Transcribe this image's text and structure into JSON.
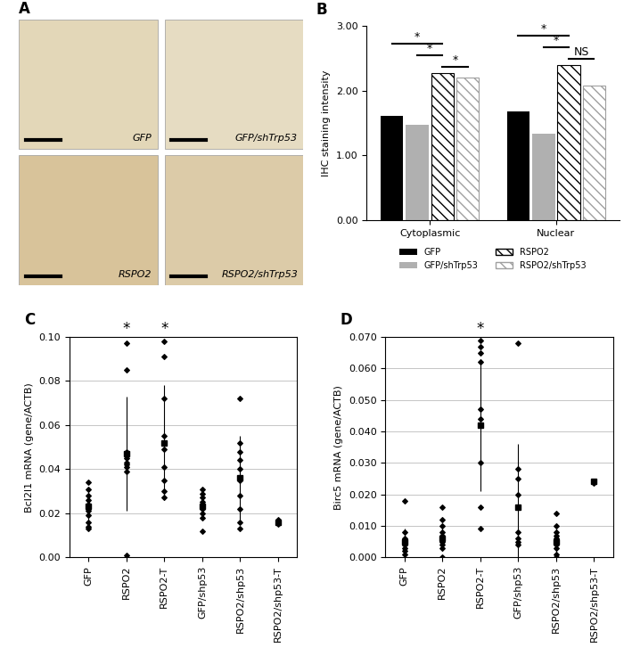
{
  "panel_a": {
    "title": "A",
    "images": [
      "GFP",
      "GFP/shTrp53",
      "RSPO2",
      "RSPO2/shTrp53"
    ]
  },
  "chart_data": [
    {
      "type": "bar",
      "title": "B",
      "y_label": "IHC staining intensity",
      "categories": [
        "Cytoplasmic",
        "Nuclear"
      ],
      "series": [
        {
          "name": "GFP",
          "color": "#000000",
          "values": [
            1.61,
            1.68
          ]
        },
        {
          "name": "GFP/shTrp53",
          "color": "#b0b0b0",
          "values": [
            1.48,
            1.34
          ]
        },
        {
          "name": "RSPO2",
          "color": "#000000",
          "values": [
            2.27,
            2.39
          ]
        },
        {
          "name": "RSPO2/shTrp53",
          "color": "#a0a0a0",
          "values": [
            2.2,
            2.08
          ]
        }
      ],
      "ylim": [
        0,
        3
      ],
      "yticks": [
        {
          "value": 0,
          "label": "0.00"
        },
        {
          "value": 1,
          "label": "1.00"
        },
        {
          "value": 2,
          "label": "2.00"
        },
        {
          "value": 3,
          "label": "3.00"
        }
      ],
      "legend": "bottom",
      "significance": [
        {
          "category": "Cytoplasmic",
          "from": "RSPO2",
          "to": "RSPO2/shTrp53",
          "label": "*"
        },
        {
          "category": "Cytoplasmic",
          "from": "GFP/shTrp53",
          "to": "RSPO2",
          "label": "*"
        },
        {
          "category": "Cytoplasmic",
          "from": "GFP",
          "to": "RSPO2",
          "label": "*"
        },
        {
          "category": "Nuclear",
          "from": "RSPO2",
          "to": "RSPO2/shTrp53",
          "label": "NS"
        },
        {
          "category": "Nuclear",
          "from": "GFP/shTrp53",
          "to": "RSPO2",
          "label": "*"
        },
        {
          "category": "Nuclear",
          "from": "GFP",
          "to": "RSPO2",
          "label": "*"
        }
      ]
    },
    {
      "type": "dot",
      "title": "C",
      "y_label": "Bcl2l1 mRNA (gene/ACTB)",
      "categories": [
        "GFP",
        "RSPO2",
        "RSPO2-T",
        "GFP/shp53",
        "RSPO2/shp53",
        "RSPO2/shp53-T"
      ],
      "points": [
        [
          0.034,
          0.031,
          0.028,
          0.026,
          0.024,
          0.022,
          0.021,
          0.019,
          0.016,
          0.014,
          0.013
        ],
        [
          0.097,
          0.085,
          0.048,
          0.045,
          0.043,
          0.042,
          0.041,
          0.039,
          0.001
        ],
        [
          0.098,
          0.091,
          0.072,
          0.055,
          0.049,
          0.041,
          0.035,
          0.03,
          0.027
        ],
        [
          0.031,
          0.029,
          0.027,
          0.025,
          0.024,
          0.022,
          0.02,
          0.018,
          0.012
        ],
        [
          0.072,
          0.052,
          0.048,
          0.044,
          0.04,
          0.035,
          0.028,
          0.022,
          0.016,
          0.013
        ],
        [
          0.017,
          0.016,
          0.015
        ]
      ],
      "means": [
        0.023,
        0.047,
        0.052,
        0.023,
        0.036,
        0.016
      ],
      "errors": [
        0.007,
        0.026,
        0.026,
        0.006,
        0.019,
        0.001
      ],
      "ylim": [
        0,
        0.1
      ],
      "yticks": [
        {
          "value": 0,
          "label": "0.00"
        },
        {
          "value": 0.02,
          "label": "0.02"
        },
        {
          "value": 0.04,
          "label": "0.04"
        },
        {
          "value": 0.06,
          "label": "0.06"
        },
        {
          "value": 0.08,
          "label": "0.08"
        },
        {
          "value": 0.1,
          "label": "0.10"
        }
      ],
      "grid": true,
      "marker": "diamond",
      "significance": [
        {
          "category": "RSPO2",
          "label": "*"
        },
        {
          "category": "RSPO2-T",
          "label": "*"
        }
      ]
    },
    {
      "type": "dot",
      "title": "D",
      "y_label": "Birc5 mRNA (gene/ACTB)",
      "categories": [
        "GFP",
        "RSPO2",
        "RSPO2-T",
        "GFP/shp53",
        "RSPO2/shp53",
        "RSPO2/shp53-T"
      ],
      "points": [
        [
          0.018,
          0.008,
          0.006,
          0.005,
          0.004,
          0.004,
          0.003,
          0.002,
          0.001
        ],
        [
          0.016,
          0.012,
          0.01,
          0.008,
          0.007,
          0.006,
          0.005,
          0.004,
          0.003,
          0.0
        ],
        [
          0.069,
          0.067,
          0.065,
          0.062,
          0.047,
          0.044,
          0.042,
          0.042,
          0.03,
          0.016,
          0.009
        ],
        [
          0.068,
          0.028,
          0.025,
          0.02,
          0.016,
          0.008,
          0.006,
          0.005,
          0.004
        ],
        [
          0.014,
          0.01,
          0.008,
          0.007,
          0.006,
          0.005,
          0.004,
          0.003,
          0.001,
          0.0
        ],
        [
          0.024,
          0.0235
        ]
      ],
      "means": [
        0.005,
        0.006,
        0.042,
        0.016,
        0.005,
        0.024
      ],
      "errors": [
        0.004,
        0.004,
        0.021,
        0.02,
        0.004,
        0.0005
      ],
      "ylim": [
        0,
        0.07
      ],
      "yticks": [
        {
          "value": 0,
          "label": "0.000"
        },
        {
          "value": 0.01,
          "label": "0.010"
        },
        {
          "value": 0.02,
          "label": "0.020"
        },
        {
          "value": 0.03,
          "label": "0.030"
        },
        {
          "value": 0.04,
          "label": "0.040"
        },
        {
          "value": 0.05,
          "label": "0.050"
        },
        {
          "value": 0.06,
          "label": "0.060"
        },
        {
          "value": 0.07,
          "label": "0.070"
        }
      ],
      "grid": true,
      "marker": "diamond",
      "significance": [
        {
          "category": "RSPO2-T",
          "label": "*"
        }
      ]
    }
  ]
}
